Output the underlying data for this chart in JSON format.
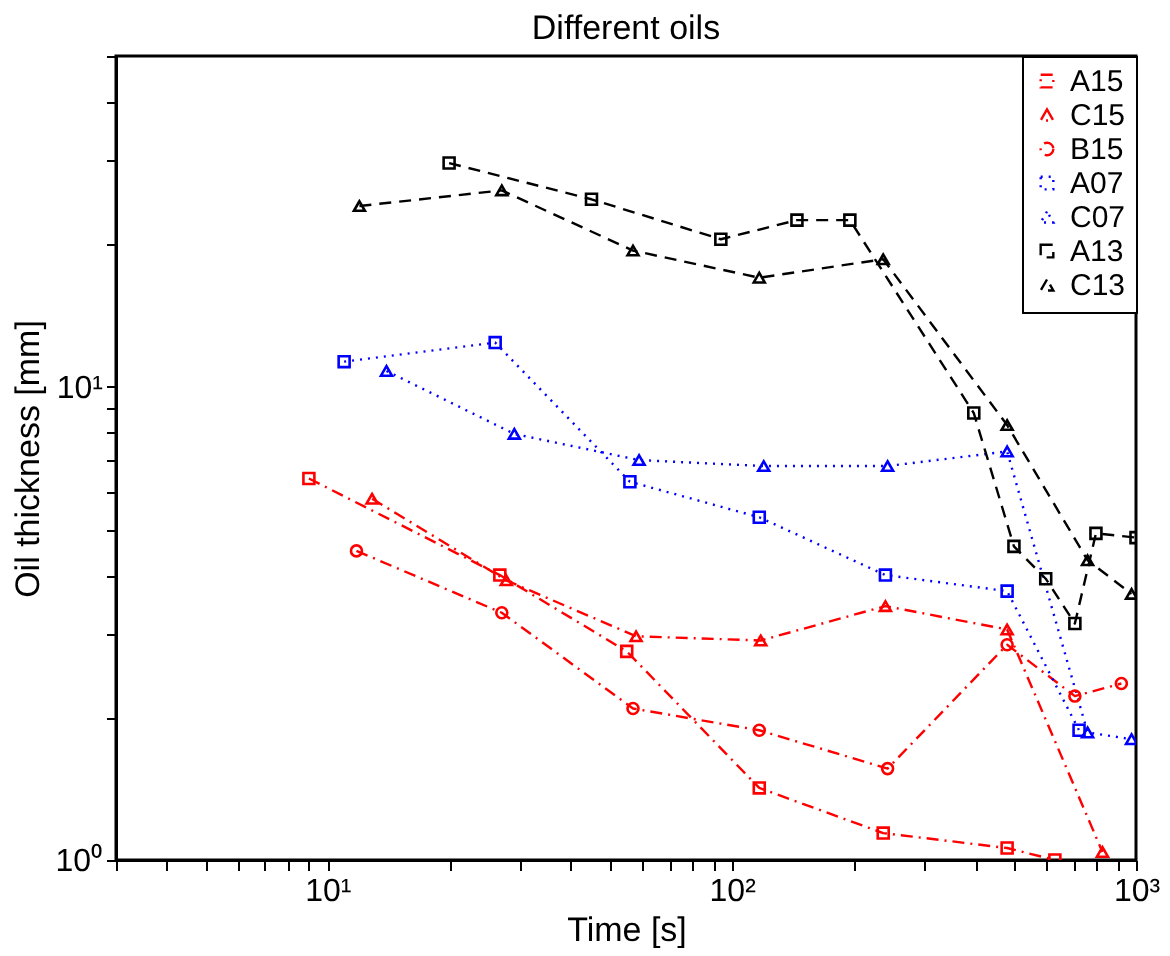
{
  "chart_data": {
    "type": "line",
    "title": "Different oils",
    "xlabel": "Time [s]",
    "ylabel": "Oil thickness [mm]",
    "log": "xy",
    "grid": false,
    "legend": "top right",
    "xlim": [
      3,
      1000
    ],
    "ylim": [
      1,
      50
    ],
    "xticks": [
      {
        "value": 3,
        "label": null
      },
      {
        "value": 4,
        "label": null
      },
      {
        "value": 5,
        "label": null
      },
      {
        "value": 6,
        "label": null
      },
      {
        "value": 7,
        "label": null
      },
      {
        "value": 8,
        "label": null
      },
      {
        "value": 9,
        "label": null
      },
      {
        "value": 10,
        "label": "10¹"
      },
      {
        "value": 20,
        "label": null
      },
      {
        "value": 30,
        "label": null
      },
      {
        "value": 40,
        "label": null
      },
      {
        "value": 50,
        "label": null
      },
      {
        "value": 60,
        "label": null
      },
      {
        "value": 70,
        "label": null
      },
      {
        "value": 80,
        "label": null
      },
      {
        "value": 90,
        "label": null
      },
      {
        "value": 100,
        "label": "10²"
      },
      {
        "value": 200,
        "label": null
      },
      {
        "value": 300,
        "label": null
      },
      {
        "value": 400,
        "label": null
      },
      {
        "value": 500,
        "label": null
      },
      {
        "value": 600,
        "label": null
      },
      {
        "value": 700,
        "label": null
      },
      {
        "value": 800,
        "label": null
      },
      {
        "value": 900,
        "label": null
      },
      {
        "value": 1000,
        "label": "10³"
      }
    ],
    "yticks": [
      {
        "value": 1,
        "label": "10⁰"
      },
      {
        "value": 2,
        "label": null
      },
      {
        "value": 3,
        "label": null
      },
      {
        "value": 4,
        "label": null
      },
      {
        "value": 5,
        "label": null
      },
      {
        "value": 6,
        "label": null
      },
      {
        "value": 7,
        "label": null
      },
      {
        "value": 8,
        "label": null
      },
      {
        "value": 9,
        "label": null
      },
      {
        "value": 10,
        "label": "10¹"
      },
      {
        "value": 20,
        "label": null
      },
      {
        "value": 30,
        "label": null
      },
      {
        "value": 40,
        "label": null
      },
      {
        "value": 50,
        "label": null
      }
    ],
    "series": [
      {
        "name": "A15",
        "color": "#ff0000",
        "marker": "square",
        "line_style": "dashdot",
        "x": [
          9,
          26.7,
          55,
          117,
          237,
          480,
          630
        ],
        "values": [
          6.4,
          4.0,
          2.76,
          1.42,
          1.14,
          1.06,
          1.0
        ]
      },
      {
        "name": "C15",
        "color": "#ff0000",
        "marker": "triangle",
        "line_style": "dashdot",
        "x": [
          12.9,
          27.7,
          58,
          118,
          240,
          480,
          826
        ],
        "values": [
          5.8,
          3.9,
          2.97,
          2.91,
          3.44,
          3.07,
          1.04
        ]
      },
      {
        "name": "B15",
        "color": "#ff0000",
        "marker": "circle",
        "line_style": "dashdot",
        "x": [
          11.8,
          27,
          57,
          117,
          243,
          480,
          706,
          920
        ],
        "values": [
          4.5,
          3.33,
          2.09,
          1.88,
          1.56,
          2.85,
          2.22,
          2.36
        ]
      },
      {
        "name": "A07",
        "color": "#0000ff",
        "marker": "square",
        "line_style": "dotted",
        "x": [
          11,
          26,
          56,
          117,
          240,
          480,
          723
        ],
        "values": [
          11.3,
          12.4,
          6.3,
          5.3,
          4.0,
          3.7,
          1.88
        ]
      },
      {
        "name": "C07",
        "color": "#0000ff",
        "marker": "triangle",
        "line_style": "dotted",
        "x": [
          14,
          29,
          59,
          120,
          243,
          480,
          759,
          975
        ],
        "values": [
          10.8,
          7.95,
          7.0,
          6.8,
          6.8,
          7.3,
          1.86,
          1.8
        ]
      },
      {
        "name": "A13",
        "color": "#000000",
        "marker": "square",
        "line_style": "dashed",
        "x": [
          20,
          45,
          94,
          145,
          196,
          397,
          499,
          598,
          706,
          796,
          1000
        ],
        "values": [
          29.7,
          24.9,
          20.5,
          22.5,
          22.5,
          8.8,
          4.6,
          3.93,
          3.16,
          4.9,
          4.8
        ]
      },
      {
        "name": "C13",
        "color": "#000000",
        "marker": "triangle",
        "line_style": "dashed",
        "x": [
          12,
          27,
          57,
          117,
          237,
          480,
          759,
          975
        ],
        "values": [
          24.1,
          26,
          19.4,
          17,
          18.6,
          8.3,
          4.3,
          3.65
        ]
      }
    ]
  }
}
